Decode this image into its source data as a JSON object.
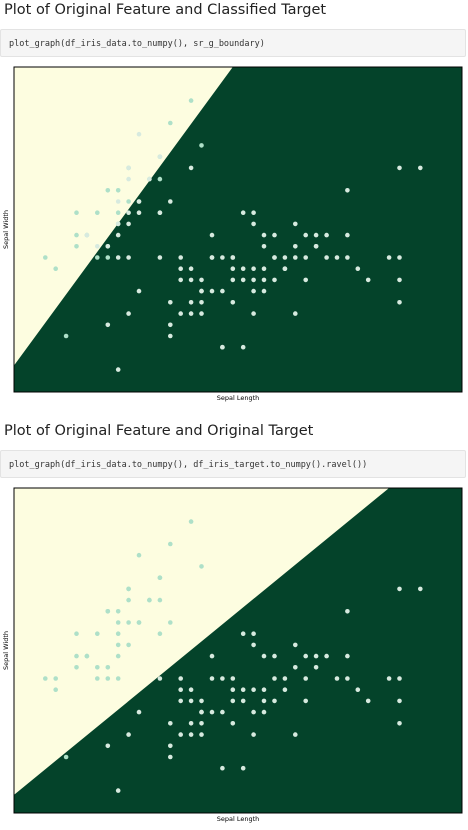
{
  "sections": [
    {
      "heading": "Plot of Original Feature and Classified Target",
      "code": "plot_graph(df_iris_data.to_numpy(), sr_g_boundary)",
      "chart_data": {
        "type": "scatter",
        "xlabel": "Sepal Length",
        "ylabel": "Sepal Width",
        "grid": false,
        "region_colors": {
          "class_0": "#fdfde0",
          "class_1": "#04432a"
        },
        "point_colors": {
          "class_0": "#aee0c8",
          "class_1": "#d7eadf"
        },
        "xlim": [
          4.0,
          8.3
        ],
        "ylim": [
          1.8,
          4.7
        ],
        "boundary": {
          "x1": 4.05,
          "y1": 2.1,
          "x2": 6.1,
          "y2": 4.7
        },
        "points": [
          [
            5.1,
            3.5,
            0
          ],
          [
            4.9,
            3.0,
            0
          ],
          [
            4.7,
            3.2,
            0
          ],
          [
            4.6,
            3.1,
            0
          ],
          [
            5.0,
            3.6,
            0
          ],
          [
            5.4,
            3.9,
            0
          ],
          [
            4.6,
            3.4,
            0
          ],
          [
            5.0,
            3.4,
            0
          ],
          [
            4.4,
            2.9,
            0
          ],
          [
            4.9,
            3.1,
            0
          ],
          [
            5.4,
            3.7,
            0
          ],
          [
            4.8,
            3.4,
            0
          ],
          [
            4.8,
            3.0,
            0
          ],
          [
            4.3,
            3.0,
            0
          ],
          [
            5.8,
            4.0,
            0
          ],
          [
            5.7,
            4.4,
            0
          ],
          [
            5.2,
            3.5,
            0
          ],
          [
            5.5,
            4.2,
            0
          ],
          [
            4.5,
            2.3,
            0
          ],
          [
            5.3,
            3.7,
            0
          ],
          [
            5.0,
            3.3,
            0
          ],
          [
            5.1,
            3.8,
            0
          ],
          [
            5.4,
            3.4,
            0
          ],
          [
            4.9,
            3.6,
            0
          ],
          [
            4.6,
            3.2,
            0
          ],
          [
            7.0,
            3.2,
            1
          ],
          [
            6.4,
            3.2,
            1
          ],
          [
            6.9,
            3.1,
            1
          ],
          [
            5.5,
            2.3,
            1
          ],
          [
            6.5,
            2.8,
            1
          ],
          [
            5.7,
            2.8,
            1
          ],
          [
            6.3,
            3.3,
            1
          ],
          [
            4.9,
            2.4,
            1
          ],
          [
            6.6,
            2.9,
            1
          ],
          [
            5.2,
            2.7,
            1
          ],
          [
            5.0,
            2.0,
            1
          ],
          [
            5.9,
            3.0,
            1
          ],
          [
            6.0,
            2.2,
            1
          ],
          [
            6.1,
            2.9,
            1
          ],
          [
            5.6,
            2.9,
            1
          ],
          [
            6.7,
            3.1,
            1
          ],
          [
            5.6,
            3.0,
            1
          ],
          [
            5.8,
            2.7,
            1
          ],
          [
            6.2,
            2.2,
            1
          ],
          [
            5.6,
            2.5,
            1
          ],
          [
            5.9,
            3.2,
            1
          ],
          [
            6.1,
            2.8,
            1
          ],
          [
            6.3,
            2.5,
            1
          ],
          [
            6.8,
            2.8,
            1
          ],
          [
            7.1,
            3.0,
            1
          ],
          [
            6.3,
            2.9,
            1
          ],
          [
            6.5,
            3.0,
            1
          ],
          [
            7.6,
            3.0,
            1
          ],
          [
            7.3,
            2.9,
            1
          ],
          [
            6.7,
            2.5,
            1
          ],
          [
            7.2,
            3.6,
            1
          ],
          [
            6.4,
            2.7,
            1
          ],
          [
            6.8,
            3.0,
            1
          ],
          [
            5.7,
            2.5,
            1
          ],
          [
            5.8,
            2.8,
            1
          ],
          [
            6.5,
            3.2,
            1
          ],
          [
            7.7,
            3.8,
            1
          ],
          [
            7.7,
            2.6,
            1
          ],
          [
            6.0,
            2.2,
            1
          ],
          [
            6.9,
            3.2,
            1
          ],
          [
            5.6,
            2.8,
            1
          ],
          [
            7.7,
            2.8,
            1
          ],
          [
            6.3,
            2.7,
            1
          ],
          [
            6.7,
            3.3,
            1
          ],
          [
            7.2,
            3.2,
            1
          ],
          [
            6.2,
            2.8,
            1
          ],
          [
            7.9,
            3.8,
            1
          ],
          [
            6.4,
            2.8,
            1
          ],
          [
            7.4,
            2.8,
            1
          ],
          [
            6.1,
            2.6,
            1
          ],
          [
            7.7,
            3.0,
            1
          ],
          [
            6.3,
            3.4,
            1
          ],
          [
            6.0,
            3.0,
            1
          ],
          [
            6.9,
            3.1,
            1
          ],
          [
            5.8,
            2.7,
            1
          ],
          [
            6.8,
            3.2,
            1
          ],
          [
            6.7,
            3.0,
            1
          ],
          [
            6.2,
            3.4,
            1
          ],
          [
            5.9,
            3.0,
            1
          ],
          [
            5.4,
            3.0,
            1
          ],
          [
            5.5,
            2.6,
            1
          ],
          [
            5.8,
            2.6,
            1
          ],
          [
            6.6,
            3.0,
            1
          ],
          [
            6.1,
            3.0,
            1
          ],
          [
            5.7,
            2.6,
            1
          ],
          [
            5.5,
            2.4,
            1
          ],
          [
            6.0,
            2.7,
            1
          ],
          [
            5.7,
            2.9,
            1
          ],
          [
            6.2,
            2.9,
            1
          ],
          [
            5.1,
            2.5,
            1
          ],
          [
            5.9,
            2.7,
            1
          ],
          [
            6.4,
            2.9,
            1
          ],
          [
            6.6,
            2.9,
            1
          ],
          [
            7.2,
            3.0,
            1
          ],
          [
            7.0,
            3.0,
            1
          ],
          [
            6.4,
            3.1,
            1
          ],
          [
            5.8,
            2.5,
            1
          ],
          [
            6.3,
            2.8,
            1
          ],
          [
            6.1,
            3.0,
            1
          ],
          [
            6.5,
            3.0,
            1
          ],
          [
            5.5,
            3.5,
            1
          ],
          [
            5.7,
            3.8,
            1
          ],
          [
            5.1,
            3.4,
            1
          ],
          [
            5.2,
            3.4,
            1
          ],
          [
            5.4,
            3.4,
            1
          ],
          [
            5.1,
            3.7,
            1
          ],
          [
            5.4,
            3.9,
            1
          ],
          [
            5.0,
            3.0,
            1
          ],
          [
            5.1,
            3.3,
            1
          ],
          [
            5.2,
            4.1,
            1
          ],
          [
            5.3,
            3.7,
            1
          ],
          [
            5.0,
            3.2,
            1
          ],
          [
            5.2,
            3.5,
            1
          ],
          [
            5.1,
            3.8,
            1
          ],
          [
            4.9,
            3.1,
            1
          ],
          [
            5.0,
            3.5,
            1
          ],
          [
            5.0,
            3.3,
            1
          ],
          [
            4.8,
            3.1,
            1
          ],
          [
            5.1,
            3.0,
            1
          ],
          [
            4.7,
            3.2,
            1
          ]
        ]
      }
    },
    {
      "heading": "Plot of Original Feature and Original Target",
      "code": "plot_graph(df_iris_data.to_numpy(), df_iris_target.to_numpy().ravel())",
      "chart_data": {
        "type": "scatter",
        "xlabel": "Sepal Length",
        "ylabel": "Sepal Width",
        "grid": false,
        "region_colors": {
          "class_0": "#fdfde0",
          "class_1": "#04432a"
        },
        "point_colors": {
          "class_0": "#aee0c8",
          "class_1": "#d7eadf"
        },
        "xlim": [
          4.0,
          8.3
        ],
        "ylim": [
          1.8,
          4.7
        ],
        "boundary": {
          "x1": 4.05,
          "y1": 2.0,
          "x2": 7.6,
          "y2": 4.7
        },
        "points": [
          [
            5.1,
            3.5,
            0
          ],
          [
            4.9,
            3.0,
            0
          ],
          [
            4.7,
            3.2,
            0
          ],
          [
            4.6,
            3.1,
            0
          ],
          [
            5.0,
            3.6,
            0
          ],
          [
            5.4,
            3.9,
            0
          ],
          [
            4.6,
            3.4,
            0
          ],
          [
            5.0,
            3.4,
            0
          ],
          [
            4.4,
            2.9,
            0
          ],
          [
            4.9,
            3.1,
            0
          ],
          [
            5.4,
            3.7,
            0
          ],
          [
            4.8,
            3.4,
            0
          ],
          [
            4.8,
            3.0,
            0
          ],
          [
            4.3,
            3.0,
            0
          ],
          [
            5.8,
            4.0,
            0
          ],
          [
            5.7,
            4.4,
            0
          ],
          [
            5.2,
            3.5,
            0
          ],
          [
            5.5,
            4.2,
            0
          ],
          [
            4.5,
            2.3,
            0
          ],
          [
            5.3,
            3.7,
            0
          ],
          [
            5.0,
            3.3,
            0
          ],
          [
            5.1,
            3.8,
            0
          ],
          [
            5.4,
            3.4,
            0
          ],
          [
            4.9,
            3.6,
            0
          ],
          [
            4.6,
            3.2,
            0
          ],
          [
            5.1,
            3.7,
            0
          ],
          [
            5.4,
            3.9,
            0
          ],
          [
            5.0,
            3.0,
            0
          ],
          [
            5.1,
            3.3,
            0
          ],
          [
            5.2,
            4.1,
            0
          ],
          [
            5.3,
            3.7,
            0
          ],
          [
            5.0,
            3.2,
            0
          ],
          [
            5.2,
            3.5,
            0
          ],
          [
            5.1,
            3.8,
            0
          ],
          [
            4.8,
            3.1,
            0
          ],
          [
            5.0,
            3.5,
            0
          ],
          [
            4.7,
            3.2,
            0
          ],
          [
            4.4,
            3.0,
            0
          ],
          [
            5.5,
            3.5,
            0
          ],
          [
            4.9,
            3.6,
            0
          ],
          [
            7.0,
            3.2,
            1
          ],
          [
            6.4,
            3.2,
            1
          ],
          [
            6.9,
            3.1,
            1
          ],
          [
            5.5,
            2.3,
            1
          ],
          [
            6.5,
            2.8,
            1
          ],
          [
            5.7,
            2.8,
            1
          ],
          [
            6.3,
            3.3,
            1
          ],
          [
            4.9,
            2.4,
            1
          ],
          [
            6.6,
            2.9,
            1
          ],
          [
            5.2,
            2.7,
            1
          ],
          [
            5.0,
            2.0,
            1
          ],
          [
            5.9,
            3.0,
            1
          ],
          [
            6.0,
            2.2,
            1
          ],
          [
            6.1,
            2.9,
            1
          ],
          [
            5.6,
            2.9,
            1
          ],
          [
            6.7,
            3.1,
            1
          ],
          [
            5.6,
            3.0,
            1
          ],
          [
            5.8,
            2.7,
            1
          ],
          [
            6.2,
            2.2,
            1
          ],
          [
            5.6,
            2.5,
            1
          ],
          [
            5.9,
            3.2,
            1
          ],
          [
            6.1,
            2.8,
            1
          ],
          [
            6.3,
            2.5,
            1
          ],
          [
            6.8,
            2.8,
            1
          ],
          [
            7.1,
            3.0,
            1
          ],
          [
            6.3,
            2.9,
            1
          ],
          [
            6.5,
            3.0,
            1
          ],
          [
            7.6,
            3.0,
            1
          ],
          [
            7.3,
            2.9,
            1
          ],
          [
            6.7,
            2.5,
            1
          ],
          [
            7.2,
            3.6,
            1
          ],
          [
            6.4,
            2.7,
            1
          ],
          [
            6.8,
            3.0,
            1
          ],
          [
            5.7,
            2.5,
            1
          ],
          [
            5.8,
            2.8,
            1
          ],
          [
            6.5,
            3.2,
            1
          ],
          [
            7.7,
            3.8,
            1
          ],
          [
            7.7,
            2.6,
            1
          ],
          [
            6.9,
            3.2,
            1
          ],
          [
            5.6,
            2.8,
            1
          ],
          [
            7.7,
            2.8,
            1
          ],
          [
            6.3,
            2.7,
            1
          ],
          [
            6.7,
            3.3,
            1
          ],
          [
            7.2,
            3.2,
            1
          ],
          [
            6.2,
            2.8,
            1
          ],
          [
            7.9,
            3.8,
            1
          ],
          [
            6.4,
            2.8,
            1
          ],
          [
            7.4,
            2.8,
            1
          ],
          [
            6.1,
            2.6,
            1
          ],
          [
            7.7,
            3.0,
            1
          ],
          [
            6.3,
            3.4,
            1
          ],
          [
            6.0,
            3.0,
            1
          ],
          [
            5.8,
            2.7,
            1
          ],
          [
            6.8,
            3.2,
            1
          ],
          [
            6.2,
            3.4,
            1
          ],
          [
            5.4,
            3.0,
            1
          ],
          [
            5.5,
            2.6,
            1
          ],
          [
            5.8,
            2.6,
            1
          ],
          [
            6.6,
            3.0,
            1
          ],
          [
            6.1,
            3.0,
            1
          ],
          [
            5.7,
            2.6,
            1
          ],
          [
            5.5,
            2.4,
            1
          ],
          [
            6.0,
            2.7,
            1
          ],
          [
            5.7,
            2.9,
            1
          ],
          [
            6.2,
            2.9,
            1
          ],
          [
            5.1,
            2.5,
            1
          ],
          [
            5.9,
            2.7,
            1
          ],
          [
            6.4,
            2.9,
            1
          ],
          [
            7.2,
            3.0,
            1
          ],
          [
            5.8,
            2.5,
            1
          ]
        ]
      }
    }
  ]
}
